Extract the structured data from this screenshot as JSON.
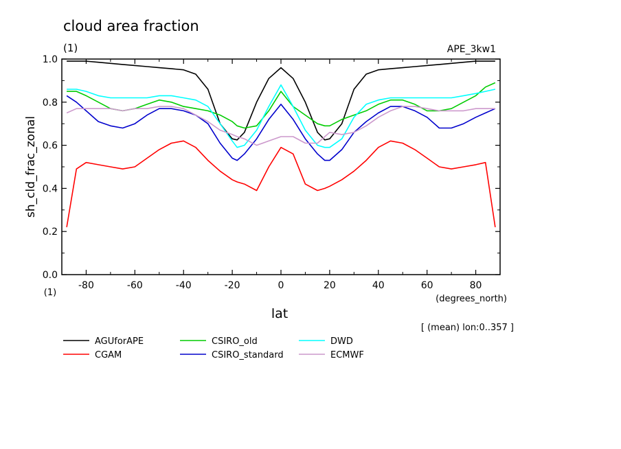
{
  "chart_data": {
    "type": "line",
    "title": "cloud area fraction",
    "units_label": "(1)",
    "experiment_label": "APE_3kw1",
    "ylabel": "sh_cld_frac_zonal",
    "xlabel": "lat",
    "x_units": "(degrees_north)",
    "y_units_corner": "(1)",
    "mean_note": "[ (mean) lon:0..357 ]",
    "xlim": [
      -90,
      90
    ],
    "ylim": [
      0,
      1
    ],
    "x_ticks": [
      -80,
      -60,
      -40,
      -20,
      0,
      20,
      40,
      60,
      80
    ],
    "x_tick_labels": [
      "-80",
      "-60",
      "-40",
      "-20",
      "0",
      "20",
      "40",
      "60",
      "80"
    ],
    "y_ticks": [
      0,
      0.2,
      0.4,
      0.6,
      0.8,
      1.0
    ],
    "y_tick_labels": [
      "0.0",
      "0.2",
      "0.4",
      "0.6",
      "0.8",
      "1.0"
    ],
    "x": [
      -88,
      -84,
      -80,
      -75,
      -70,
      -65,
      -60,
      -55,
      -50,
      -45,
      -40,
      -35,
      -30,
      -25,
      -20,
      -18,
      -15,
      -10,
      -5,
      0,
      5,
      10,
      15,
      18,
      20,
      25,
      30,
      35,
      40,
      45,
      50,
      55,
      60,
      65,
      70,
      75,
      80,
      84,
      88
    ],
    "series": [
      {
        "name": "AGUforAPE",
        "color": "#000000",
        "values": [
          0.99,
          0.99,
          0.99,
          0.985,
          0.98,
          0.975,
          0.97,
          0.965,
          0.96,
          0.955,
          0.95,
          0.93,
          0.86,
          0.7,
          0.63,
          0.625,
          0.66,
          0.8,
          0.91,
          0.96,
          0.91,
          0.8,
          0.66,
          0.625,
          0.63,
          0.7,
          0.86,
          0.93,
          0.95,
          0.955,
          0.96,
          0.965,
          0.97,
          0.975,
          0.98,
          0.985,
          0.99,
          0.99,
          0.99
        ]
      },
      {
        "name": "CGAM",
        "color": "#ff0000",
        "values": [
          0.22,
          0.49,
          0.52,
          0.51,
          0.5,
          0.49,
          0.5,
          0.54,
          0.58,
          0.61,
          0.62,
          0.59,
          0.53,
          0.48,
          0.44,
          0.43,
          0.42,
          0.39,
          0.5,
          0.59,
          0.56,
          0.42,
          0.39,
          0.4,
          0.41,
          0.44,
          0.48,
          0.53,
          0.59,
          0.62,
          0.61,
          0.58,
          0.54,
          0.5,
          0.49,
          0.5,
          0.51,
          0.52,
          0.22
        ]
      },
      {
        "name": "CSIRO_old",
        "color": "#00cc00",
        "values": [
          0.85,
          0.85,
          0.83,
          0.8,
          0.77,
          0.76,
          0.77,
          0.79,
          0.81,
          0.8,
          0.78,
          0.77,
          0.76,
          0.74,
          0.71,
          0.69,
          0.68,
          0.69,
          0.76,
          0.85,
          0.78,
          0.74,
          0.7,
          0.69,
          0.69,
          0.72,
          0.74,
          0.76,
          0.79,
          0.81,
          0.81,
          0.79,
          0.76,
          0.76,
          0.77,
          0.8,
          0.83,
          0.87,
          0.89
        ]
      },
      {
        "name": "CSIRO_standard",
        "color": "#0000cc",
        "values": [
          0.83,
          0.8,
          0.76,
          0.71,
          0.69,
          0.68,
          0.7,
          0.74,
          0.77,
          0.77,
          0.76,
          0.74,
          0.7,
          0.61,
          0.54,
          0.53,
          0.56,
          0.63,
          0.72,
          0.79,
          0.72,
          0.63,
          0.56,
          0.53,
          0.53,
          0.58,
          0.66,
          0.71,
          0.75,
          0.78,
          0.78,
          0.76,
          0.73,
          0.68,
          0.68,
          0.7,
          0.73,
          0.75,
          0.77
        ]
      },
      {
        "name": "DWD",
        "color": "#00ffff",
        "values": [
          0.86,
          0.86,
          0.85,
          0.83,
          0.82,
          0.82,
          0.82,
          0.82,
          0.83,
          0.83,
          0.82,
          0.81,
          0.78,
          0.7,
          0.62,
          0.59,
          0.6,
          0.67,
          0.78,
          0.88,
          0.78,
          0.67,
          0.6,
          0.59,
          0.59,
          0.63,
          0.73,
          0.79,
          0.81,
          0.82,
          0.82,
          0.82,
          0.82,
          0.82,
          0.82,
          0.83,
          0.84,
          0.85,
          0.86
        ]
      },
      {
        "name": "ECMWF",
        "color": "#cc99cc",
        "values": [
          0.75,
          0.77,
          0.77,
          0.77,
          0.77,
          0.76,
          0.77,
          0.77,
          0.78,
          0.78,
          0.77,
          0.74,
          0.71,
          0.67,
          0.65,
          0.64,
          0.63,
          0.6,
          0.62,
          0.64,
          0.64,
          0.61,
          0.61,
          0.64,
          0.66,
          0.65,
          0.66,
          0.69,
          0.73,
          0.76,
          0.78,
          0.78,
          0.77,
          0.76,
          0.76,
          0.76,
          0.77,
          0.77,
          0.77
        ]
      }
    ]
  }
}
